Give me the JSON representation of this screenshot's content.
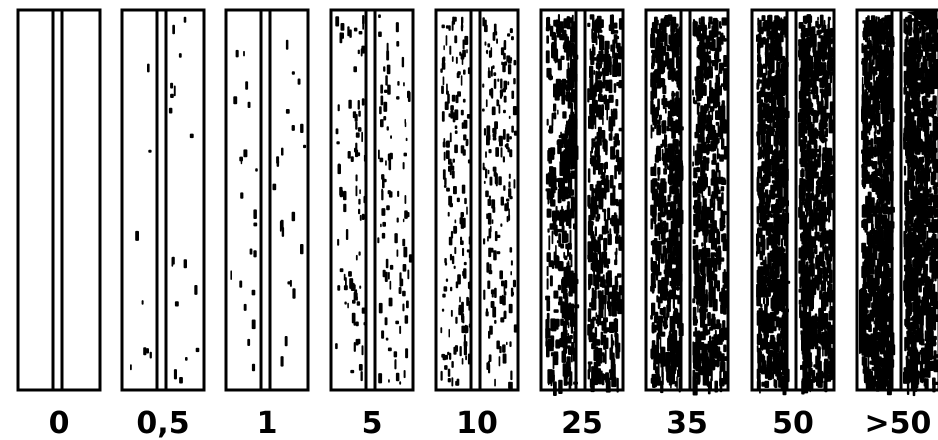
{
  "panels": [
    {
      "label": "0",
      "density": 0
    },
    {
      "label": "0,5",
      "density": 0.5
    },
    {
      "label": "1",
      "density": 1
    },
    {
      "label": "5",
      "density": 5
    },
    {
      "label": "10",
      "density": 10
    },
    {
      "label": "25",
      "density": 25
    },
    {
      "label": "35",
      "density": 35
    },
    {
      "label": "50",
      "density": 50
    },
    {
      "label": ">50",
      "density": 60
    }
  ],
  "colors": {
    "ink": "#000000",
    "paper": "#ffffff"
  }
}
